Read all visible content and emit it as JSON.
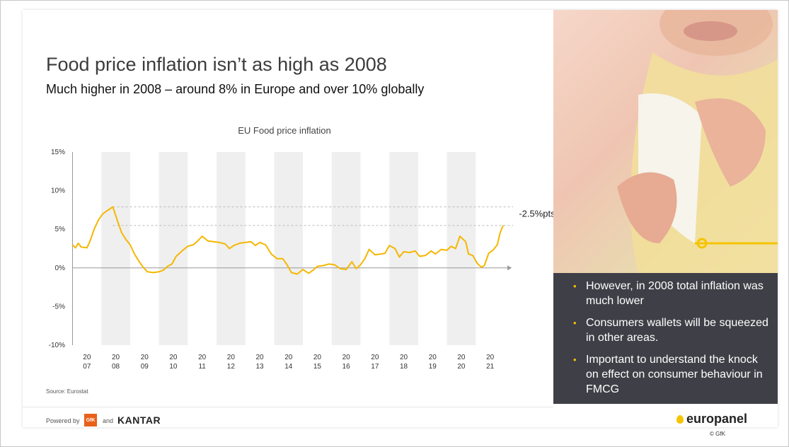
{
  "slide": {
    "title": "Food price inflation isn’t as high as 2008",
    "subtitle": "Much higher in 2008 – around 8% in Europe and over 10% globally",
    "source": "Source: Eurostat",
    "powered_by": "Powered by",
    "gfk": "GfK",
    "and": "and",
    "kantar": "KANTAR",
    "europanel": "europanel",
    "copyright": "© GfK"
  },
  "panel": {
    "bullets": [
      "However, in 2008 total inflation was much lower",
      "Consumers wallets will be squeezed in other areas.",
      "Important to understand the knock on effect on consumer behaviour in FMCG"
    ]
  },
  "colors": {
    "line": "#f5b700",
    "panel": "#3f3f47",
    "accent": "#f5c400",
    "band": "#efefef"
  },
  "chart_data": {
    "type": "line",
    "title": "EU Food price inflation",
    "xlabel": "",
    "ylabel": "",
    "ylim": [
      -10,
      15
    ],
    "yticks": [
      "15%",
      "10%",
      "5%",
      "0%",
      "-5%",
      "-10%"
    ],
    "year_ticks": [
      {
        "year": 2007,
        "l1": "20",
        "l2": "07"
      },
      {
        "year": 2008,
        "l1": "20",
        "l2": "08"
      },
      {
        "year": 2009,
        "l1": "20",
        "l2": "09"
      },
      {
        "year": 2010,
        "l1": "20",
        "l2": "10"
      },
      {
        "year": 2011,
        "l1": "20",
        "l2": "11"
      },
      {
        "year": 2012,
        "l1": "20",
        "l2": "12"
      },
      {
        "year": 2013,
        "l1": "20",
        "l2": "13"
      },
      {
        "year": 2014,
        "l1": "20",
        "l2": "14"
      },
      {
        "year": 2015,
        "l1": "20",
        "l2": "15"
      },
      {
        "year": 2016,
        "l1": "20",
        "l2": "16"
      },
      {
        "year": 2017,
        "l1": "20",
        "l2": "17"
      },
      {
        "year": 2018,
        "l1": "20",
        "l2": "18"
      },
      {
        "year": 2019,
        "l1": "20",
        "l2": "19"
      },
      {
        "year": 2020,
        "l1": "20",
        "l2": "20"
      },
      {
        "year": 2021,
        "l1": "20",
        "l2": "21"
      }
    ],
    "shaded_years": [
      2008,
      2010,
      2012,
      2014,
      2016,
      2018,
      2020
    ],
    "reference_lines": [
      7.9,
      5.5
    ],
    "annotation": "-2.5%pts",
    "series": [
      {
        "values": [
          [
            2007.0,
            3.0
          ],
          [
            2007.1,
            2.6
          ],
          [
            2007.2,
            3.2
          ],
          [
            2007.3,
            2.7
          ],
          [
            2007.5,
            2.6
          ],
          [
            2007.6,
            3.4
          ],
          [
            2007.75,
            5.0
          ],
          [
            2007.9,
            6.2
          ],
          [
            2008.05,
            7.0
          ],
          [
            2008.2,
            7.4
          ],
          [
            2008.4,
            7.9
          ],
          [
            2008.55,
            6.2
          ],
          [
            2008.7,
            4.6
          ],
          [
            2008.85,
            3.7
          ],
          [
            2009.0,
            3.0
          ],
          [
            2009.15,
            1.8
          ],
          [
            2009.3,
            0.9
          ],
          [
            2009.45,
            0.1
          ],
          [
            2009.6,
            -0.5
          ],
          [
            2009.8,
            -0.6
          ],
          [
            2010.0,
            -0.5
          ],
          [
            2010.15,
            -0.3
          ],
          [
            2010.3,
            0.2
          ],
          [
            2010.45,
            0.5
          ],
          [
            2010.6,
            1.5
          ],
          [
            2010.8,
            2.2
          ],
          [
            2011.0,
            2.8
          ],
          [
            2011.2,
            3.0
          ],
          [
            2011.35,
            3.5
          ],
          [
            2011.5,
            4.1
          ],
          [
            2011.7,
            3.5
          ],
          [
            2011.9,
            3.4
          ],
          [
            2012.1,
            3.3
          ],
          [
            2012.3,
            3.1
          ],
          [
            2012.45,
            2.5
          ],
          [
            2012.6,
            2.9
          ],
          [
            2012.8,
            3.2
          ],
          [
            2013.0,
            3.3
          ],
          [
            2013.2,
            3.4
          ],
          [
            2013.35,
            2.9
          ],
          [
            2013.5,
            3.3
          ],
          [
            2013.7,
            3.0
          ],
          [
            2013.9,
            1.8
          ],
          [
            2014.1,
            1.2
          ],
          [
            2014.3,
            1.2
          ],
          [
            2014.45,
            0.4
          ],
          [
            2014.6,
            -0.6
          ],
          [
            2014.8,
            -0.8
          ],
          [
            2015.0,
            -0.2
          ],
          [
            2015.2,
            -0.7
          ],
          [
            2015.35,
            -0.3
          ],
          [
            2015.5,
            0.2
          ],
          [
            2015.7,
            0.3
          ],
          [
            2015.9,
            0.5
          ],
          [
            2016.1,
            0.4
          ],
          [
            2016.3,
            -0.1
          ],
          [
            2016.5,
            -0.2
          ],
          [
            2016.7,
            0.8
          ],
          [
            2016.85,
            -0.1
          ],
          [
            2017.0,
            0.4
          ],
          [
            2017.15,
            1.2
          ],
          [
            2017.3,
            2.4
          ],
          [
            2017.5,
            1.7
          ],
          [
            2017.7,
            1.8
          ],
          [
            2017.85,
            1.9
          ],
          [
            2018.0,
            2.9
          ],
          [
            2018.2,
            2.5
          ],
          [
            2018.35,
            1.4
          ],
          [
            2018.5,
            2.1
          ],
          [
            2018.7,
            2.0
          ],
          [
            2018.9,
            2.2
          ],
          [
            2019.05,
            1.5
          ],
          [
            2019.25,
            1.6
          ],
          [
            2019.45,
            2.2
          ],
          [
            2019.6,
            1.8
          ],
          [
            2019.8,
            2.4
          ],
          [
            2020.0,
            2.3
          ],
          [
            2020.15,
            2.8
          ],
          [
            2020.3,
            2.5
          ],
          [
            2020.45,
            4.1
          ],
          [
            2020.65,
            3.4
          ],
          [
            2020.75,
            1.8
          ],
          [
            2020.9,
            1.6
          ],
          [
            2021.05,
            0.6
          ],
          [
            2021.2,
            0.1
          ],
          [
            2021.3,
            0.3
          ],
          [
            2021.45,
            1.9
          ],
          [
            2021.6,
            2.3
          ],
          [
            2021.75,
            3.0
          ],
          [
            2021.85,
            4.6
          ],
          [
            2021.95,
            5.5
          ]
        ]
      }
    ]
  }
}
